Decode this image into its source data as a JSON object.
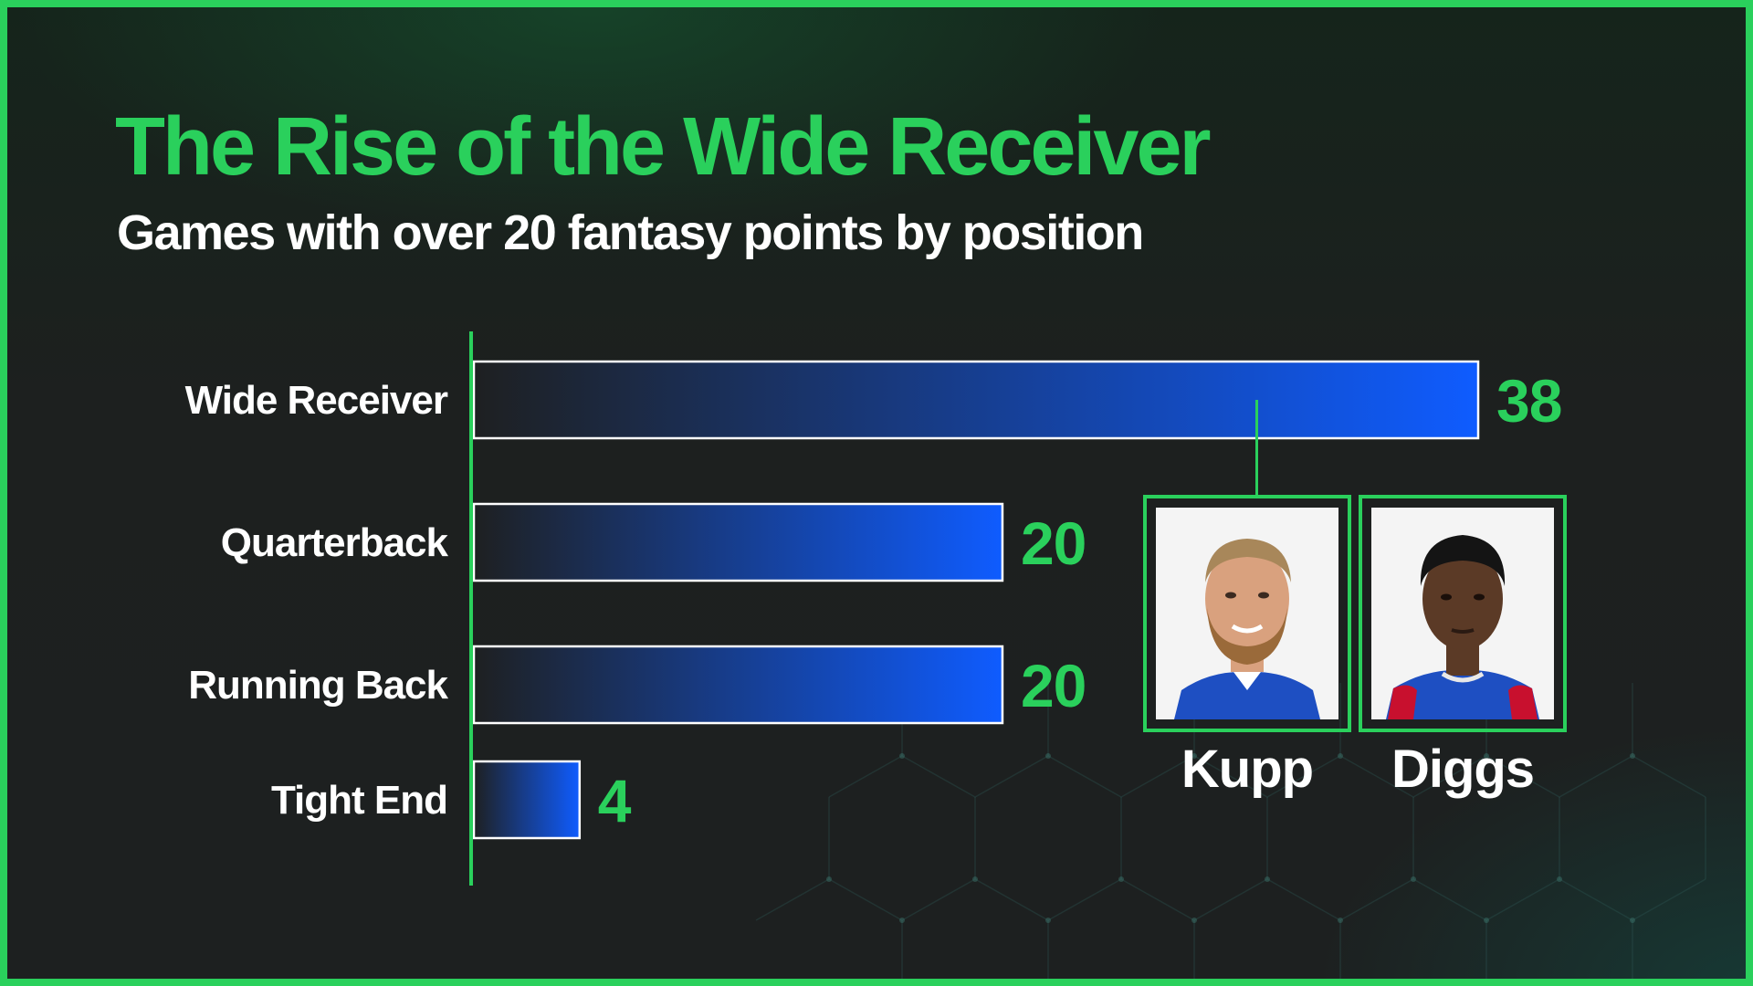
{
  "title": "The Rise of the Wide Receiver",
  "subtitle": "Games with over 20 fantasy points by position",
  "colors": {
    "accent": "#2ad05c",
    "bar_start": "#1e2021",
    "bar_end": "#0f5cff",
    "text": "#ffffff",
    "background": "#1d2020"
  },
  "chart_data": {
    "type": "bar",
    "orientation": "horizontal",
    "categories": [
      "Wide Receiver",
      "Quarterback",
      "Running Back",
      "Tight End"
    ],
    "values": [
      38,
      20,
      20,
      4
    ],
    "value_labels": [
      "38",
      "20",
      "20",
      "4"
    ],
    "xlim": [
      0,
      38
    ],
    "grid": false,
    "legend": "none"
  },
  "players": [
    {
      "name": "Kupp",
      "photo_icon": "player-headshot-kupp",
      "skin": "#d9a17e",
      "hair": "#a8875a",
      "beard": "#9a6a3a"
    },
    {
      "name": "Diggs",
      "photo_icon": "player-headshot-diggs",
      "skin": "#5b3a26",
      "hair": "#141414",
      "beard": "#2a1a12"
    }
  ],
  "callout": {
    "connects_category": "Wide Receiver"
  }
}
